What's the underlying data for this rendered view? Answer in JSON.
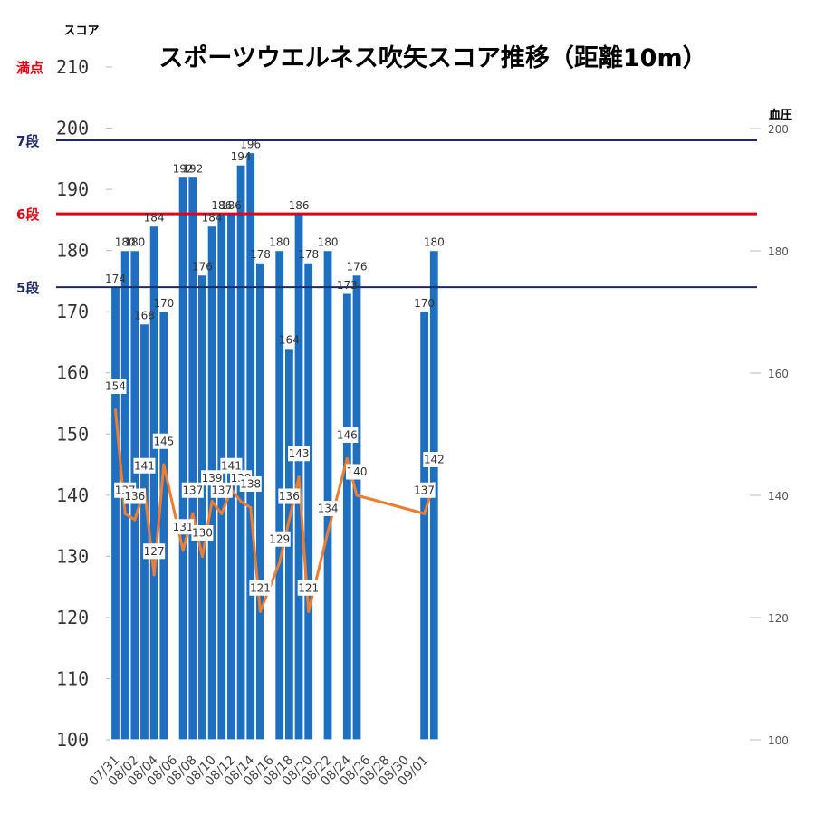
{
  "chart_data": {
    "type": "bar",
    "title": "スポーツウエルネス吹矢スコア推移（距離10m）",
    "ylabel": "スコア",
    "y2label": "血圧",
    "ylim": [
      100,
      210
    ],
    "y2lim": [
      100,
      200
    ],
    "yticks": [
      "100",
      "110",
      "120",
      "130",
      "140",
      "150",
      "160",
      "170",
      "180",
      "190",
      "200",
      "210"
    ],
    "y2ticks": [
      "100",
      "120",
      "140",
      "160",
      "180",
      "200"
    ],
    "xticks": [
      "07/31",
      "08/02",
      "08/04",
      "08/06",
      "08/08",
      "08/10",
      "08/12",
      "08/14",
      "08/16",
      "08/18",
      "08/20",
      "08/22",
      "08/24",
      "08/26",
      "08/28",
      "08/30",
      "09/01"
    ],
    "x_start": "07/31",
    "reference_lines": [
      {
        "label": "満点",
        "value": 210,
        "color": "#e60012"
      },
      {
        "label": "7段",
        "value": 198,
        "color": "#1f2a6b"
      },
      {
        "label": "6段",
        "value": 186,
        "color": "#e60012"
      },
      {
        "label": "5段",
        "value": 174,
        "color": "#1f2a6b"
      }
    ],
    "series": [
      {
        "name": "スコア",
        "kind": "bar",
        "color": "#1f6fc0",
        "x": [
          "07/31",
          "08/01",
          "08/02",
          "08/03",
          "08/04",
          "08/05",
          "08/07",
          "08/08",
          "08/09",
          "08/10",
          "08/11",
          "08/12",
          "08/13",
          "08/14",
          "08/15",
          "08/17",
          "08/18",
          "08/19",
          "08/20",
          "08/22",
          "08/24",
          "08/25",
          "09/01",
          "09/02"
        ],
        "values": [
          174,
          180,
          180,
          168,
          184,
          170,
          192,
          192,
          176,
          184,
          186,
          186,
          194,
          196,
          178,
          180,
          164,
          186,
          178,
          180,
          173,
          176,
          170,
          180
        ]
      },
      {
        "name": "血圧",
        "kind": "line",
        "color": "#ed7d31",
        "axis": "right",
        "x": [
          "07/31",
          "08/01",
          "08/02",
          "08/03",
          "08/04",
          "08/05",
          "08/07",
          "08/08",
          "08/09",
          "08/10",
          "08/11",
          "08/12",
          "08/13",
          "08/14",
          "08/15",
          "08/17",
          "08/18",
          "08/19",
          "08/20",
          "08/22",
          "08/24",
          "08/25",
          "09/01",
          "09/02"
        ],
        "values": [
          154,
          137,
          136,
          141,
          127,
          145,
          131,
          137,
          130,
          139,
          137,
          141,
          139,
          138,
          121,
          129,
          136,
          143,
          121,
          134,
          146,
          140,
          137,
          142
        ]
      }
    ],
    "colors": {
      "bar": "#1f6fc0",
      "bar_edge": "#ffffff",
      "line": "#ed7d31",
      "grid": "#d9d9d9"
    }
  }
}
